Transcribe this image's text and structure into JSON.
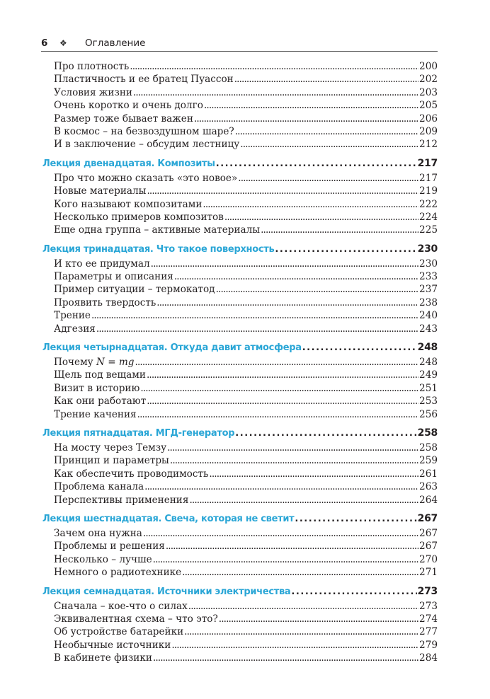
{
  "header": {
    "page_number": "6",
    "ornament": "❖",
    "title": "Оглавление"
  },
  "toc": [
    {
      "type": "item",
      "title": "Про плотность",
      "page": "200"
    },
    {
      "type": "item",
      "title": "Пластичность и ее братец Пуассон",
      "page": "202"
    },
    {
      "type": "item",
      "title": "Условия жизни",
      "page": "203"
    },
    {
      "type": "item",
      "title": "Очень коротко и очень долго",
      "page": "205"
    },
    {
      "type": "item",
      "title": "Размер тоже бывает важен",
      "page": "206"
    },
    {
      "type": "item",
      "title": "В космос – на безвоздушном шаре?",
      "page": "209"
    },
    {
      "type": "item",
      "title": "И в заключение – обсудим лестницу",
      "page": "212"
    },
    {
      "type": "head",
      "title": "Лекция двенадцатая. Композиты",
      "page": "217"
    },
    {
      "type": "item",
      "title": "Про что можно сказать «это новое»",
      "page": "217"
    },
    {
      "type": "item",
      "title": "Новые материалы",
      "page": "219"
    },
    {
      "type": "item",
      "title": "Кого называют композитами",
      "page": "222"
    },
    {
      "type": "item",
      "title": "Несколько примеров композитов",
      "page": "224"
    },
    {
      "type": "item",
      "title": "Еще одна группа – активные материалы",
      "page": "225"
    },
    {
      "type": "head",
      "title": "Лекция тринадцатая. Что такое поверхность",
      "page": "230"
    },
    {
      "type": "item",
      "title": "И кто ее придумал",
      "page": "230"
    },
    {
      "type": "item",
      "title": "Параметры и описания",
      "page": "233"
    },
    {
      "type": "item",
      "title": "Пример ситуации – термокатод",
      "page": "237"
    },
    {
      "type": "item",
      "title": "Проявить твердость",
      "page": "238"
    },
    {
      "type": "item",
      "title": "Трение",
      "page": "240"
    },
    {
      "type": "item",
      "title": "Адгезия",
      "page": "243"
    },
    {
      "type": "head",
      "title": "Лекция четырнадцатая. Откуда давит атмосфера",
      "page": "248"
    },
    {
      "type": "item",
      "title": "Почему N = mg",
      "page": "248"
    },
    {
      "type": "item",
      "title": "Щель под вещами",
      "page": "249"
    },
    {
      "type": "item",
      "title": "Визит в историю",
      "page": "251"
    },
    {
      "type": "item",
      "title": "Как они работают",
      "page": "253"
    },
    {
      "type": "item",
      "title": "Трение качения",
      "page": "256"
    },
    {
      "type": "head",
      "title": "Лекция пятнадцатая. МГД-генератор",
      "page": "258"
    },
    {
      "type": "item",
      "title": "На мосту через Темзу",
      "page": "258"
    },
    {
      "type": "item",
      "title": "Принцип и параметры",
      "page": "259"
    },
    {
      "type": "item",
      "title": "Как обеспечить проводимость",
      "page": "261"
    },
    {
      "type": "item",
      "title": "Проблема канала",
      "page": "263"
    },
    {
      "type": "item",
      "title": "Перспективы применения",
      "page": "264"
    },
    {
      "type": "head",
      "title": "Лекция шестнадцатая. Свеча, которая не светит",
      "page": "267"
    },
    {
      "type": "item",
      "title": "Зачем она нужна",
      "page": "267"
    },
    {
      "type": "item",
      "title": "Проблемы и решения",
      "page": "267"
    },
    {
      "type": "item",
      "title": "Несколько – лучше",
      "page": "270"
    },
    {
      "type": "item",
      "title": "Немного о радиотехнике",
      "page": "271"
    },
    {
      "type": "head",
      "title": "Лекция семнадцатая. Источники электричества",
      "page": "273"
    },
    {
      "type": "item",
      "title": "Сначала – кое-что о силах",
      "page": "273"
    },
    {
      "type": "item",
      "title": "Эквивалентная схема – что это?",
      "page": "274"
    },
    {
      "type": "item",
      "title": "Об устройстве батарейки",
      "page": "277"
    },
    {
      "type": "item",
      "title": "Необычные источники",
      "page": "279"
    },
    {
      "type": "item",
      "title": "В кабинете физики",
      "page": "284"
    }
  ],
  "colors": {
    "heading": "#2aa6d6",
    "text": "#231f20"
  }
}
